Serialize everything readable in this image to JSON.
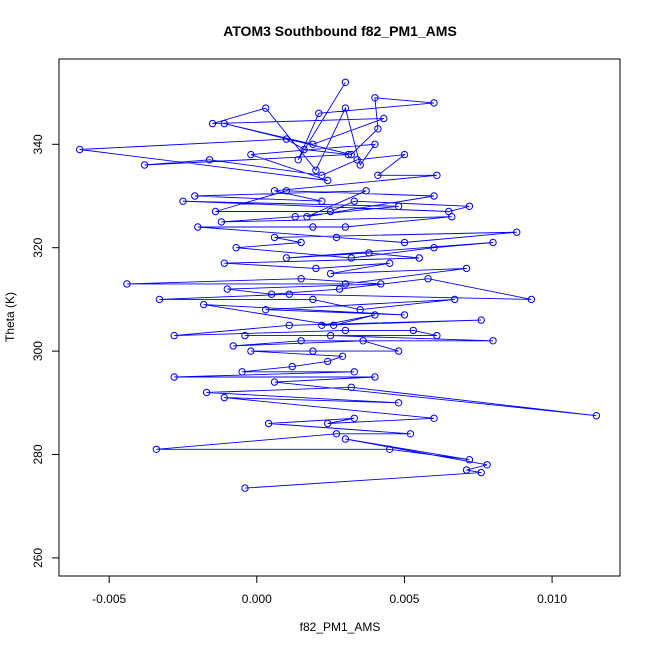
{
  "chart_data": {
    "type": "line",
    "title": "ATOM3 Southbound f82_PM1_AMS",
    "xlabel": "f82_PM1_AMS",
    "ylabel": "Theta (K)",
    "xlim": [
      -0.0067,
      0.0123
    ],
    "ylim": [
      256.5,
      356.5
    ],
    "x_ticks": [
      -0.005,
      0.0,
      0.005,
      0.01
    ],
    "x_tick_labels": [
      "-0.005",
      "0.000",
      "0.005",
      "0.010"
    ],
    "y_ticks": [
      260,
      280,
      300,
      320,
      340
    ],
    "y_tick_labels": [
      "260",
      "280",
      "300",
      "320",
      "340"
    ],
    "grid": false,
    "line_style": "lines with open circle markers",
    "series": [
      {
        "color": "#0000ff",
        "x": [
          0.003,
          0.0014,
          0.0021,
          0.006,
          0.004,
          0.0041,
          0.0032,
          -0.0011,
          0.0019,
          0.0043,
          -0.0015,
          0.0003,
          0.002,
          0.003,
          0.0035,
          0.004,
          -0.0002,
          0.0024,
          -0.006,
          0.001,
          0.0016,
          0.0031,
          -0.0038,
          -0.0016,
          0.0022,
          0.0034,
          0.005,
          0.0041,
          0.0061,
          0.0006,
          0.0022,
          -0.0021,
          0.0037,
          0.0017,
          0.006,
          0.001,
          -0.0014,
          0.0025,
          0.0033,
          0.0072,
          0.0065,
          -0.0025,
          0.0048,
          0.0013,
          -0.0012,
          0.0066,
          0.003,
          0.0019,
          -0.002,
          0.0027,
          0.005,
          0.0088,
          0.0006,
          0.0015,
          -0.0007,
          0.0032,
          0.006,
          0.008,
          0.001,
          0.0038,
          0.0055,
          -0.0011,
          0.002,
          0.0045,
          0.0025,
          0.0071,
          0.003,
          -0.0044,
          0.0015,
          0.0042,
          -0.001,
          0.0005,
          0.0028,
          0.0058,
          0.0093,
          0.0011,
          -0.0033,
          0.0019,
          0.0035,
          0.0067,
          0.0003,
          0.005,
          -0.0018,
          0.0026,
          0.004,
          0.0022,
          0.0076,
          0.0011,
          -0.0028,
          0.003,
          0.0053,
          0.0061,
          -0.0004,
          0.0025,
          0.008,
          0.0015,
          -0.0008,
          0.0036,
          0.0048,
          0.0019,
          -0.0002,
          0.0029,
          0.0024,
          0.0012,
          -0.0005,
          0.0033,
          -0.0028,
          0.004,
          0.0006,
          0.0115,
          0.0032,
          -0.0017,
          0.0048,
          -0.0011,
          0.006,
          0.0024,
          0.0033,
          0.0004,
          0.0052,
          0.0027,
          -0.0034,
          0.0045,
          0.0072,
          0.003,
          0.0078,
          0.0071,
          0.0076,
          -0.0004
        ],
        "y": [
          352,
          337,
          346,
          348,
          349,
          343,
          338,
          344,
          340,
          345,
          344,
          347,
          335,
          347,
          336,
          340,
          338,
          333,
          339,
          341,
          339,
          338,
          336,
          337,
          334,
          337,
          338,
          334,
          334,
          331,
          329,
          330,
          331,
          326,
          330,
          331,
          327,
          327,
          329,
          328,
          327,
          329,
          328,
          326,
          325,
          326,
          324,
          324,
          324,
          322,
          321,
          323,
          322,
          321,
          320,
          318,
          320,
          321,
          318,
          319,
          318,
          317,
          316,
          317,
          315,
          316,
          313,
          313,
          314,
          313,
          312,
          311,
          312,
          314,
          310,
          311,
          310,
          310,
          308,
          310,
          308,
          307,
          309,
          305,
          307,
          305,
          306,
          305,
          303,
          304,
          304,
          303,
          303,
          303,
          302,
          302,
          301,
          302,
          300,
          300,
          300,
          299,
          298,
          297,
          296,
          296,
          295,
          295,
          294,
          287.5,
          293,
          292,
          290,
          291,
          287,
          286,
          287,
          286,
          284,
          284,
          281,
          281,
          279,
          283,
          278,
          277,
          276.5,
          273.5
        ]
      }
    ]
  }
}
